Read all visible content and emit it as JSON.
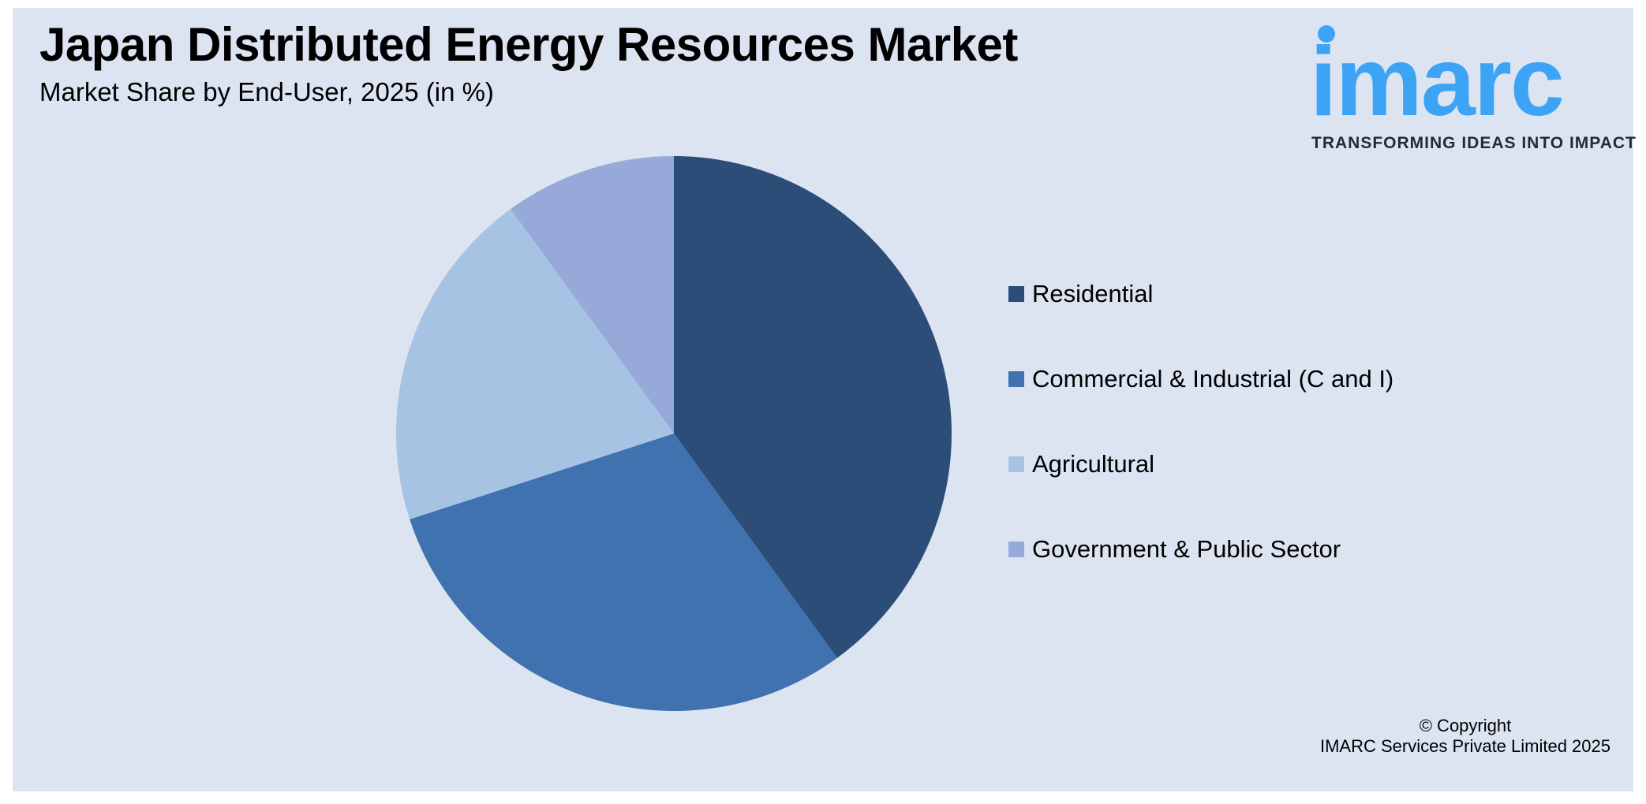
{
  "chart_data": {
    "type": "pie",
    "title": "Japan Distributed Energy Resources Market",
    "subtitle": "Market Share by End-User, 2025 (in %)",
    "series": [
      {
        "name": "Residential",
        "value": 40,
        "color": "#2c4d77"
      },
      {
        "name": "Commercial & Industrial (C and I)",
        "value": 30,
        "color": "#3f72af"
      },
      {
        "name": "Agricultural",
        "value": 20,
        "color": "#a7c3e3"
      },
      {
        "name": "Government & Public Sector",
        "value": 10,
        "color": "#96a9d8"
      }
    ],
    "legend_placement": "right"
  },
  "logo": {
    "text": "imarc",
    "tagline": "TRANSFORMING IDEAS INTO IMPACT",
    "color": "#3da4f5"
  },
  "copyright": {
    "line1": "© Copyright",
    "line2": "IMARC Services Private Limited 2025"
  },
  "colors": {
    "background": "#dce4f2"
  }
}
